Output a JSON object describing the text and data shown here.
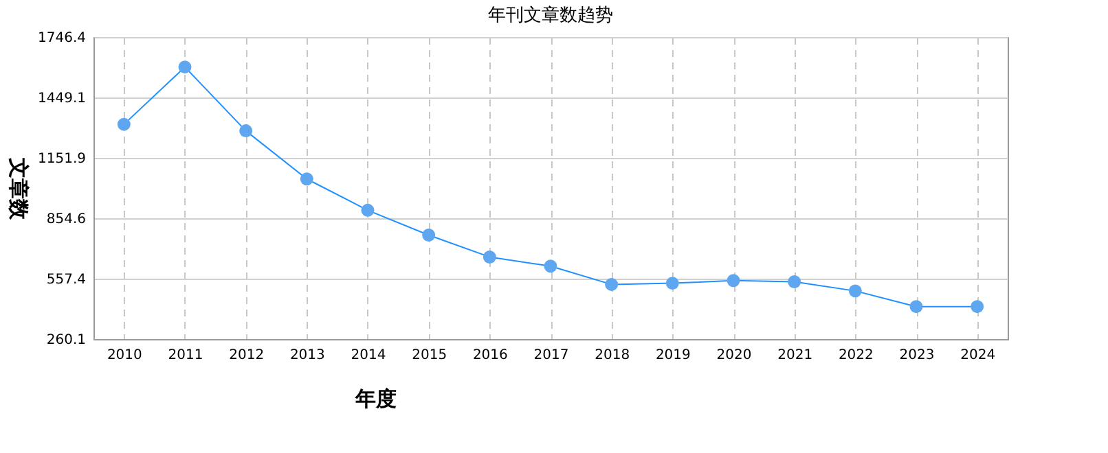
{
  "chart_data": {
    "type": "line",
    "title": "年刊文章数趋势",
    "xlabel": "年度",
    "ylabel": "文章数",
    "categories": [
      "2010",
      "2011",
      "2012",
      "2013",
      "2014",
      "2015",
      "2016",
      "2017",
      "2018",
      "2019",
      "2020",
      "2021",
      "2022",
      "2023",
      "2024"
    ],
    "series": [
      {
        "color": "#1e90ff",
        "values": [
          1317,
          1599,
          1285,
          1048,
          894,
          772,
          664,
          619,
          529,
          535,
          548,
          542,
          497,
          420,
          420
        ]
      }
    ],
    "ylim": [
      260.1,
      1746.4
    ],
    "yticks": [
      260.1,
      557.4,
      854.6,
      1151.9,
      1449.1,
      1746.4
    ],
    "grid": true,
    "marker": "circle",
    "line_style": "solid"
  }
}
